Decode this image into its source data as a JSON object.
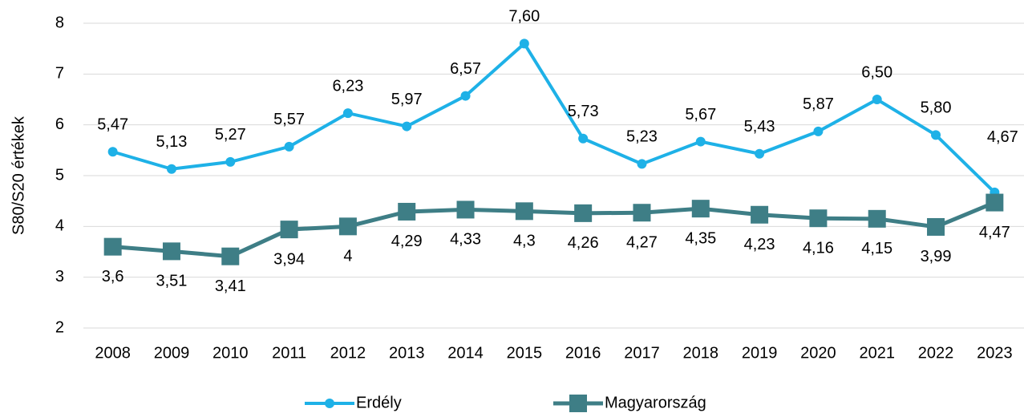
{
  "chart_data": {
    "type": "line",
    "y_label": "S80/S20 értékek",
    "categories": [
      "2008",
      "2009",
      "2010",
      "2011",
      "2012",
      "2013",
      "2014",
      "2015",
      "2016",
      "2017",
      "2018",
      "2019",
      "2020",
      "2021",
      "2022",
      "2023"
    ],
    "series": [
      {
        "name": "Erdély",
        "color": "#1eb1e7",
        "marker": "circle",
        "values": [
          5.47,
          5.13,
          5.27,
          5.57,
          6.23,
          5.97,
          6.57,
          7.6,
          5.73,
          5.23,
          5.67,
          5.43,
          5.87,
          6.5,
          5.8,
          4.67
        ],
        "value_labels": [
          "5,47",
          "5,13",
          "5,27",
          "5,57",
          "6,23",
          "5,97",
          "6,57",
          "7,60",
          "5,73",
          "5,23",
          "5,67",
          "5,43",
          "5,87",
          "6,50",
          "5,80",
          "4,67"
        ]
      },
      {
        "name": "Magyarország",
        "color": "#3e7e86",
        "marker": "square",
        "values": [
          3.6,
          3.51,
          3.41,
          3.94,
          4,
          4.29,
          4.33,
          4.3,
          4.26,
          4.27,
          4.35,
          4.23,
          4.16,
          4.15,
          3.99,
          4.47
        ],
        "value_labels": [
          "3,6",
          "3,51",
          "3,41",
          "3,94",
          "4",
          "4,29",
          "4,33",
          "4,3",
          "4,26",
          "4,27",
          "4,35",
          "4,23",
          "4,16",
          "4,15",
          "3,99",
          "4,47"
        ]
      }
    ],
    "ylim": [
      2,
      8
    ],
    "yticks": [
      2,
      3,
      4,
      5,
      6,
      7,
      8
    ],
    "grid": true,
    "legend": "bottom"
  }
}
